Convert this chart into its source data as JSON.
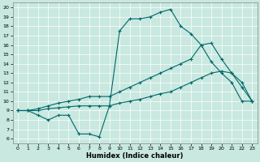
{
  "xlabel": "Humidex (Indice chaleur)",
  "bg_color": "#c8e8e0",
  "line_color": "#006868",
  "xlim": [
    -0.5,
    23.5
  ],
  "ylim": [
    5.5,
    20.5
  ],
  "yticks": [
    6,
    7,
    8,
    9,
    10,
    11,
    12,
    13,
    14,
    15,
    16,
    17,
    18,
    19,
    20
  ],
  "xticks": [
    0,
    1,
    2,
    3,
    4,
    5,
    6,
    7,
    8,
    9,
    10,
    11,
    12,
    13,
    14,
    15,
    16,
    17,
    18,
    19,
    20,
    21,
    22,
    23
  ],
  "line1_x": [
    0,
    1,
    2,
    3,
    4,
    5,
    6,
    7,
    8,
    9,
    10,
    11,
    12,
    13,
    14,
    15,
    16,
    17,
    18,
    19,
    20,
    21,
    22,
    23
  ],
  "line1_y": [
    9.0,
    9.0,
    8.5,
    8.0,
    8.5,
    8.5,
    6.5,
    6.5,
    6.2,
    9.5,
    17.5,
    18.8,
    18.8,
    19.0,
    19.5,
    19.8,
    18.0,
    17.2,
    16.0,
    14.2,
    13.0,
    12.0,
    10.0,
    10.0
  ],
  "line2_x": [
    0,
    1,
    2,
    3,
    4,
    5,
    6,
    7,
    8,
    9,
    10,
    11,
    12,
    13,
    14,
    15,
    16,
    17,
    18,
    19,
    20,
    21,
    22,
    23
  ],
  "line2_y": [
    9.0,
    9.0,
    9.2,
    9.5,
    9.8,
    10.0,
    10.2,
    10.5,
    10.5,
    10.5,
    11.0,
    11.5,
    12.0,
    12.5,
    13.0,
    13.5,
    14.0,
    14.5,
    16.0,
    16.2,
    14.5,
    13.0,
    12.0,
    10.0
  ],
  "line3_x": [
    0,
    1,
    2,
    3,
    4,
    5,
    6,
    7,
    8,
    9,
    10,
    11,
    12,
    13,
    14,
    15,
    16,
    17,
    18,
    19,
    20,
    21,
    22,
    23
  ],
  "line3_y": [
    9.0,
    9.0,
    9.0,
    9.2,
    9.3,
    9.4,
    9.5,
    9.5,
    9.5,
    9.5,
    9.8,
    10.0,
    10.2,
    10.5,
    10.8,
    11.0,
    11.5,
    12.0,
    12.5,
    13.0,
    13.2,
    13.0,
    11.5,
    10.0
  ]
}
